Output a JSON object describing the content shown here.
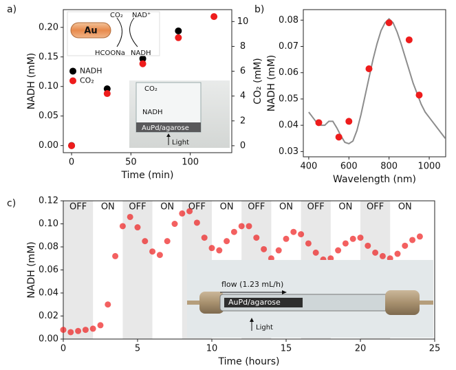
{
  "chart_data": [
    {
      "type": "scatter",
      "panel_label": "a)",
      "x_label": "Time (min)",
      "y_label": "NADH (mM)",
      "y2_label": "CO₂ (mM)",
      "x": [
        0,
        30,
        60,
        90,
        120
      ],
      "series": [
        {
          "name": "NADH",
          "color": "#000000",
          "values": [
            0,
            0.096,
            0.147,
            0.194,
            null
          ]
        },
        {
          "name": "CO₂",
          "color": "#ee1c1c",
          "axis": "y2",
          "values": [
            0,
            4.2,
            6.6,
            8.7,
            10.4
          ]
        }
      ],
      "xlim": [
        -7,
        135
      ],
      "xticks": [
        0,
        50,
        100
      ],
      "ylim": [
        -0.012,
        0.23
      ],
      "yticks": [
        {
          "value": 0,
          "label": "0.00"
        },
        {
          "value": 0.05,
          "label": "0.05"
        },
        {
          "value": 0.1,
          "label": "0.10"
        },
        {
          "value": 0.15,
          "label": "0.15"
        },
        {
          "value": 0.2,
          "label": "0.20"
        }
      ],
      "y2lim": [
        -0.56,
        10.96
      ],
      "y2ticks": [
        0,
        2,
        4,
        6,
        8,
        10
      ],
      "legend": "center left",
      "inset_labels": [
        "Au",
        "CO₂",
        "NAD⁺",
        "HCOONa",
        "NADH",
        "CO₂",
        "NADH",
        "AuPd/agarose",
        "Light"
      ]
    },
    {
      "type": "line",
      "panel_label": "b)",
      "x_label": "Wavelength (nm)",
      "y_label": "NADH (mM)",
      "series": [
        {
          "mode": "line",
          "color": "#8c8c8c",
          "x": [
            400,
            420,
            440,
            460,
            480,
            500,
            520,
            540,
            560,
            580,
            600,
            620,
            640,
            660,
            680,
            700,
            720,
            740,
            760,
            780,
            800,
            820,
            840,
            860,
            880,
            900,
            920,
            940,
            960,
            980,
            1000,
            1020,
            1040,
            1060,
            1080
          ],
          "values": [
            0.045,
            0.043,
            0.041,
            0.04,
            0.04,
            0.0415,
            0.0415,
            0.039,
            0.036,
            0.0335,
            0.033,
            0.034,
            0.038,
            0.044,
            0.051,
            0.058,
            0.065,
            0.071,
            0.076,
            0.079,
            0.0805,
            0.079,
            0.0755,
            0.071,
            0.066,
            0.061,
            0.056,
            0.052,
            0.048,
            0.045,
            0.043,
            0.041,
            0.039,
            0.037,
            0.035
          ]
        },
        {
          "mode": "markers",
          "color": "#ee1c1c",
          "x": [
            450,
            550,
            600,
            700,
            800,
            900,
            950
          ],
          "values": [
            0.041,
            0.0355,
            0.0415,
            0.0615,
            0.079,
            0.0725,
            0.0515
          ]
        }
      ],
      "xlim": [
        373,
        1082
      ],
      "xticks": [
        400,
        600,
        800,
        1000
      ],
      "ylim": [
        0.028,
        0.084
      ],
      "yticks": [
        {
          "value": 0.03,
          "label": "0.03"
        },
        {
          "value": 0.04,
          "label": "0.04"
        },
        {
          "value": 0.05,
          "label": "0.05"
        },
        {
          "value": 0.06,
          "label": "0.06"
        },
        {
          "value": 0.07,
          "label": "0.07"
        },
        {
          "value": 0.08,
          "label": "0.08"
        }
      ]
    },
    {
      "type": "scatter",
      "panel_label": "c)",
      "x_label": "Time (hours)",
      "y_label": "NADH (mM)",
      "x": [
        0,
        0.5,
        1,
        1.5,
        2,
        2.5,
        3,
        3.5,
        4,
        4.5,
        5,
        5.5,
        6,
        6.5,
        7,
        7.5,
        8,
        8.5,
        9,
        9.5,
        10,
        10.5,
        11,
        11.5,
        12,
        12.5,
        13,
        13.5,
        14,
        14.5,
        15,
        15.5,
        16,
        16.5,
        17,
        17.5,
        18,
        18.5,
        19,
        19.5,
        20,
        20.5,
        21,
        21.5,
        22,
        22.5,
        23,
        23.5,
        24
      ],
      "series": [
        {
          "color": "#ee1c1c",
          "values": [
            0.008,
            0.006,
            0.007,
            0.008,
            0.009,
            0.012,
            0.03,
            0.072,
            0.098,
            0.106,
            0.097,
            0.085,
            0.076,
            0.073,
            0.085,
            0.1,
            0.109,
            0.111,
            0.101,
            0.088,
            0.079,
            0.077,
            0.085,
            0.093,
            0.098,
            0.098,
            0.088,
            0.078,
            0.07,
            0.077,
            0.087,
            0.093,
            0.091,
            0.083,
            0.075,
            0.069,
            0.07,
            0.077,
            0.083,
            0.087,
            0.088,
            0.081,
            0.075,
            0.072,
            0.07,
            0.074,
            0.081,
            0.086,
            0.089
          ]
        }
      ],
      "periods": [
        {
          "label": "OFF",
          "start": 0,
          "end": 2
        },
        {
          "label": "ON",
          "start": 2,
          "end": 4
        },
        {
          "label": "OFF",
          "start": 4,
          "end": 6
        },
        {
          "label": "ON",
          "start": 6,
          "end": 8
        },
        {
          "label": "OFF",
          "start": 8,
          "end": 10
        },
        {
          "label": "ON",
          "start": 10,
          "end": 12
        },
        {
          "label": "OFF",
          "start": 12,
          "end": 14
        },
        {
          "label": "ON",
          "start": 14,
          "end": 16
        },
        {
          "label": "OFF",
          "start": 16,
          "end": 18
        },
        {
          "label": "ON",
          "start": 18,
          "end": 20
        },
        {
          "label": "OFF",
          "start": 20,
          "end": 22
        },
        {
          "label": "ON",
          "start": 22,
          "end": 24
        }
      ],
      "period_color": "#e8e8e8",
      "xlim": [
        0,
        25
      ],
      "xticks": [
        0,
        5,
        10,
        15,
        20,
        25
      ],
      "ylim": [
        0,
        0.12
      ],
      "yticks": [
        {
          "value": 0,
          "label": "0.00"
        },
        {
          "value": 0.02,
          "label": "0.02"
        },
        {
          "value": 0.04,
          "label": "0.04"
        },
        {
          "value": 0.06,
          "label": "0.06"
        },
        {
          "value": 0.08,
          "label": "0.08"
        },
        {
          "value": 0.1,
          "label": "0.10"
        },
        {
          "value": 0.12,
          "label": "0.12"
        }
      ],
      "inset_labels": [
        "flow (1.23 mL/h)",
        "AuPd/agarose",
        "Light"
      ]
    }
  ]
}
